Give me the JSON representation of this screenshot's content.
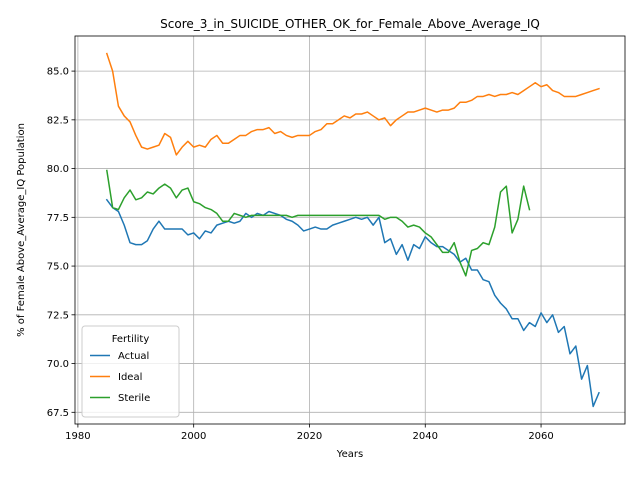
{
  "chart_data": {
    "type": "line",
    "title": "Score_3_in_SUICIDE_OTHER_OK_for_Female_Above_Average_IQ",
    "xlabel": "Years",
    "ylabel": "% of Female Above_Average_IQ Population",
    "xlim": [
      1979.5,
      2074.5
    ],
    "ylim": [
      66.9,
      86.8
    ],
    "xticks": [
      1980,
      2000,
      2020,
      2040,
      2060
    ],
    "yticks": [
      67.5,
      70.0,
      72.5,
      75.0,
      77.5,
      80.0,
      82.5,
      85.0
    ],
    "ytick_labels": [
      "67.5",
      "70.0",
      "72.5",
      "75.0",
      "77.5",
      "80.0",
      "82.5",
      "85.0"
    ],
    "grid": true,
    "legend": {
      "title": "Fertility",
      "placement": "lower-left"
    },
    "series": [
      {
        "name": "Actual",
        "color": "#1f77b4",
        "x": [
          1985,
          1986,
          1987,
          1988,
          1989,
          1990,
          1991,
          1992,
          1993,
          1994,
          1995,
          1996,
          1997,
          1998,
          1999,
          2000,
          2001,
          2002,
          2003,
          2004,
          2005,
          2006,
          2007,
          2008,
          2009,
          2010,
          2011,
          2012,
          2013,
          2014,
          2015,
          2016,
          2017,
          2018,
          2019,
          2020,
          2021,
          2022,
          2023,
          2024,
          2025,
          2026,
          2027,
          2028,
          2029,
          2030,
          2031,
          2032,
          2033,
          2034,
          2035,
          2036,
          2037,
          2038,
          2039,
          2040,
          2041,
          2042,
          2043,
          2044,
          2045,
          2046,
          2047,
          2048,
          2049,
          2050,
          2051,
          2052,
          2053,
          2054,
          2055,
          2056,
          2057,
          2058,
          2059,
          2060,
          2061,
          2062,
          2063,
          2064,
          2065,
          2066,
          2067,
          2068,
          2069,
          2070
        ],
        "values": [
          78.4,
          78.0,
          77.8,
          77.1,
          76.2,
          76.1,
          76.1,
          76.3,
          76.9,
          77.3,
          76.9,
          76.9,
          76.9,
          76.9,
          76.6,
          76.7,
          76.4,
          76.8,
          76.7,
          77.1,
          77.2,
          77.3,
          77.2,
          77.3,
          77.7,
          77.5,
          77.7,
          77.6,
          77.8,
          77.7,
          77.6,
          77.4,
          77.3,
          77.1,
          76.8,
          76.9,
          77.0,
          76.9,
          76.9,
          77.1,
          77.2,
          77.3,
          77.4,
          77.5,
          77.4,
          77.5,
          77.1,
          77.5,
          76.2,
          76.4,
          75.6,
          76.1,
          75.3,
          76.1,
          75.9,
          76.5,
          76.2,
          76.0,
          76.0,
          75.8,
          75.6,
          75.2,
          75.4,
          74.8,
          74.8,
          74.3,
          74.2,
          73.5,
          73.1,
          72.8,
          72.3,
          72.3,
          71.7,
          72.1,
          71.9,
          72.6,
          72.1,
          72.5,
          71.6,
          71.9,
          70.5,
          70.9,
          69.2,
          69.9,
          67.8,
          68.5
        ]
      },
      {
        "name": "Ideal",
        "color": "#ff7f0e",
        "x": [
          1985,
          1986,
          1987,
          1988,
          1989,
          1990,
          1991,
          1992,
          1993,
          1994,
          1995,
          1996,
          1997,
          1998,
          1999,
          2000,
          2001,
          2002,
          2003,
          2004,
          2005,
          2006,
          2007,
          2008,
          2009,
          2010,
          2011,
          2012,
          2013,
          2014,
          2015,
          2016,
          2017,
          2018,
          2019,
          2020,
          2021,
          2022,
          2023,
          2024,
          2025,
          2026,
          2027,
          2028,
          2029,
          2030,
          2031,
          2032,
          2033,
          2034,
          2035,
          2036,
          2037,
          2038,
          2039,
          2040,
          2041,
          2042,
          2043,
          2044,
          2045,
          2046,
          2047,
          2048,
          2049,
          2050,
          2051,
          2052,
          2053,
          2054,
          2055,
          2056,
          2057,
          2058,
          2059,
          2060,
          2061,
          2062,
          2063,
          2064,
          2065,
          2066,
          2067,
          2068,
          2069,
          2070
        ],
        "values": [
          85.9,
          85.0,
          83.2,
          82.7,
          82.4,
          81.7,
          81.1,
          81.0,
          81.1,
          81.2,
          81.8,
          81.6,
          80.7,
          81.1,
          81.4,
          81.1,
          81.2,
          81.1,
          81.5,
          81.7,
          81.3,
          81.3,
          81.5,
          81.7,
          81.7,
          81.9,
          82.0,
          82.0,
          82.1,
          81.8,
          81.9,
          81.7,
          81.6,
          81.7,
          81.7,
          81.7,
          81.9,
          82.0,
          82.3,
          82.3,
          82.5,
          82.7,
          82.6,
          82.8,
          82.8,
          82.9,
          82.7,
          82.5,
          82.6,
          82.2,
          82.5,
          82.7,
          82.9,
          82.9,
          83.0,
          83.1,
          83.0,
          82.9,
          83.0,
          83.0,
          83.1,
          83.4,
          83.4,
          83.5,
          83.7,
          83.7,
          83.8,
          83.7,
          83.8,
          83.8,
          83.9,
          83.8,
          84.0,
          84.2,
          84.4,
          84.2,
          84.3,
          84.0,
          83.9,
          83.7,
          83.7,
          83.7,
          83.8,
          83.9,
          84.0,
          84.1
        ]
      },
      {
        "name": "Sterile",
        "color": "#2ca02c",
        "x": [
          1985,
          1986,
          1987,
          1988,
          1989,
          1990,
          1991,
          1992,
          1993,
          1994,
          1995,
          1996,
          1997,
          1998,
          1999,
          2000,
          2001,
          2002,
          2003,
          2004,
          2005,
          2006,
          2007,
          2008,
          2009,
          2010,
          2011,
          2012,
          2013,
          2014,
          2015,
          2016,
          2017,
          2018,
          2019,
          2020,
          2021,
          2022,
          2023,
          2024,
          2025,
          2026,
          2027,
          2028,
          2029,
          2030,
          2031,
          2032,
          2033,
          2034,
          2035,
          2036,
          2037,
          2038,
          2039,
          2040,
          2041,
          2042,
          2043,
          2044,
          2045,
          2046,
          2047,
          2048,
          2049,
          2050,
          2051,
          2052,
          2053,
          2054,
          2055,
          2056,
          2057,
          2058
        ],
        "values": [
          79.9,
          78.0,
          77.9,
          78.5,
          78.9,
          78.4,
          78.5,
          78.8,
          78.7,
          79.0,
          79.2,
          79.0,
          78.5,
          78.9,
          79.0,
          78.3,
          78.2,
          78.0,
          77.9,
          77.7,
          77.3,
          77.3,
          77.7,
          77.6,
          77.5,
          77.6,
          77.6,
          77.6,
          77.6,
          77.6,
          77.6,
          77.6,
          77.5,
          77.6,
          77.6,
          77.6,
          77.6,
          77.6,
          77.6,
          77.6,
          77.6,
          77.6,
          77.6,
          77.6,
          77.6,
          77.6,
          77.6,
          77.6,
          77.4,
          77.5,
          77.5,
          77.3,
          77.0,
          77.1,
          77.0,
          76.7,
          76.5,
          76.1,
          75.7,
          75.7,
          76.2,
          75.2,
          74.5,
          75.8,
          75.9,
          76.2,
          76.1,
          77.0,
          78.8,
          79.1,
          76.7,
          77.4,
          79.1,
          77.9
        ]
      }
    ]
  }
}
